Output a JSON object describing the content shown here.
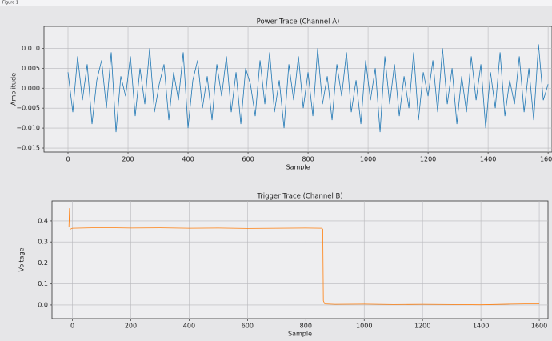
{
  "window_title": "Figure 1",
  "chart_data": [
    {
      "type": "line",
      "title": "Power Trace (Channel A)",
      "xlabel": "Sample",
      "ylabel": "Amplitude",
      "color": "#1f77b4",
      "grid": true,
      "x": [
        0,
        16,
        32,
        48,
        64,
        80,
        96,
        112,
        128,
        144,
        160,
        176,
        192,
        208,
        224,
        240,
        256,
        272,
        288,
        304,
        320,
        336,
        352,
        368,
        384,
        400,
        416,
        432,
        448,
        464,
        480,
        496,
        512,
        528,
        544,
        560,
        576,
        592,
        608,
        624,
        640,
        656,
        672,
        688,
        704,
        720,
        736,
        752,
        768,
        784,
        800,
        816,
        832,
        848,
        864,
        880,
        896,
        912,
        928,
        944,
        960,
        976,
        992,
        1008,
        1024,
        1040,
        1056,
        1072,
        1088,
        1104,
        1120,
        1136,
        1152,
        1168,
        1184,
        1200,
        1216,
        1232,
        1248,
        1264,
        1280,
        1296,
        1312,
        1328,
        1344,
        1360,
        1376,
        1392,
        1408,
        1424,
        1440,
        1456,
        1472,
        1488,
        1504,
        1520,
        1536,
        1552,
        1568,
        1584,
        1600
      ],
      "values": [
        0.004,
        -0.006,
        0.008,
        -0.003,
        0.006,
        -0.009,
        0.002,
        0.007,
        -0.005,
        0.009,
        -0.011,
        0.003,
        -0.002,
        0.008,
        -0.007,
        0.005,
        -0.004,
        0.01,
        -0.006,
        0.001,
        0.006,
        -0.008,
        0.004,
        -0.003,
        0.009,
        -0.01,
        0.002,
        0.007,
        -0.005,
        0.003,
        -0.008,
        0.006,
        -0.002,
        0.008,
        -0.006,
        0.004,
        -0.009,
        0.005,
        0.001,
        -0.007,
        0.007,
        -0.004,
        0.009,
        -0.006,
        0.002,
        -0.01,
        0.006,
        -0.003,
        0.008,
        -0.005,
        0.004,
        -0.007,
        0.01,
        -0.004,
        0.003,
        -0.008,
        0.006,
        -0.002,
        0.009,
        -0.006,
        0.002,
        -0.009,
        0.007,
        -0.003,
        0.005,
        -0.011,
        0.008,
        -0.004,
        0.006,
        -0.007,
        0.003,
        -0.005,
        0.009,
        -0.008,
        0.004,
        -0.002,
        0.007,
        -0.006,
        0.01,
        -0.004,
        0.005,
        -0.009,
        0.003,
        -0.006,
        0.008,
        -0.003,
        0.006,
        -0.01,
        0.004,
        -0.005,
        0.009,
        -0.007,
        0.002,
        -0.004,
        0.008,
        -0.006,
        0.005,
        -0.008,
        0.011,
        -0.003,
        0.001
      ],
      "xlim": [
        -80,
        1613
      ],
      "xticks": [
        0,
        200,
        400,
        600,
        800,
        1000,
        1200,
        1400,
        1600
      ],
      "ylim": [
        -0.016,
        0.0155
      ],
      "yticks": [
        {
          "value": 0.01,
          "label": "0.010"
        },
        {
          "value": 0.005,
          "label": "0.005"
        },
        {
          "value": 0,
          "label": "0.000"
        },
        {
          "value": -0.005,
          "label": "−0.005"
        },
        {
          "value": -0.01,
          "label": "−0.010"
        },
        {
          "value": -0.015,
          "label": "−0.015"
        }
      ]
    },
    {
      "type": "line",
      "title": "Trigger Trace (Channel B)",
      "xlabel": "Sample",
      "ylabel": "Voltage",
      "color": "#ff7f0e",
      "grid": true,
      "x": [
        -12,
        -10,
        -8,
        0,
        100,
        200,
        300,
        400,
        500,
        600,
        700,
        800,
        855,
        858,
        860,
        865,
        900,
        1000,
        1100,
        1200,
        1300,
        1400,
        1500,
        1600
      ],
      "values": [
        0.37,
        0.46,
        0.36,
        0.365,
        0.368,
        0.366,
        0.367,
        0.365,
        0.366,
        0.364,
        0.365,
        0.366,
        0.365,
        0.36,
        0.02,
        0.005,
        0.003,
        0.004,
        0.002,
        0.003,
        0.002,
        0.001,
        0.004,
        0.006
      ],
      "xlim": [
        -70,
        1630
      ],
      "xticks": [
        0,
        200,
        400,
        600,
        800,
        1000,
        1200,
        1400,
        1600
      ],
      "ylim": [
        -0.065,
        0.495
      ],
      "yticks": [
        {
          "value": 0,
          "label": "0.0"
        },
        0.1,
        0.2,
        0.3,
        0.4
      ]
    }
  ]
}
